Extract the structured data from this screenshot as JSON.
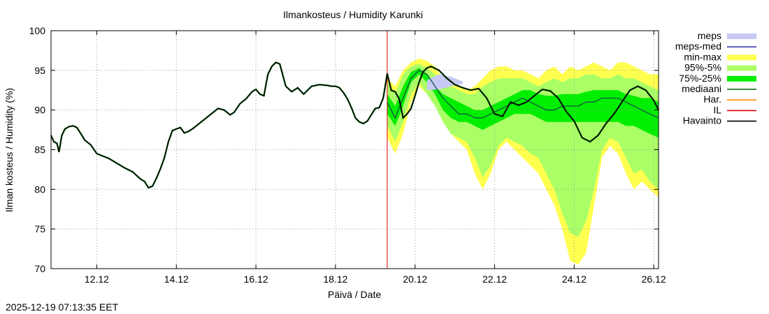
{
  "chart_data": {
    "type": "area",
    "title": "Ilmankosteus / Humidity  Karunki",
    "xlabel": "Päivä / Date",
    "ylabel": "Ilman kosteus / Humidity (%)",
    "ylim": [
      70,
      100
    ],
    "xlim": [
      10.85,
      26.12
    ],
    "yticks": [
      70,
      75,
      80,
      85,
      90,
      95,
      100
    ],
    "xticks": [
      {
        "day": 12,
        "label": "12.12"
      },
      {
        "day": 14,
        "label": "14.12"
      },
      {
        "day": 16,
        "label": "16.12"
      },
      {
        "day": 18,
        "label": "18.12"
      },
      {
        "day": 20,
        "label": "20.12"
      },
      {
        "day": 22,
        "label": "22.12"
      },
      {
        "day": 24,
        "label": "24.12"
      },
      {
        "day": 26,
        "label": "26.12"
      }
    ],
    "grid": true,
    "forecast_start_day": 19.3,
    "legend": [
      {
        "label": "meps",
        "color": "#c8c8f5",
        "kind": "band"
      },
      {
        "label": "meps-med",
        "color": "#3a3ab0",
        "kind": "line"
      },
      {
        "label": "min-max",
        "color": "#ffff50",
        "kind": "band"
      },
      {
        "label": "95%-5%",
        "color": "#aaff66",
        "kind": "band"
      },
      {
        "label": "75%-25%",
        "color": "#00ee00",
        "kind": "band"
      },
      {
        "label": "mediaani",
        "color": "#006600",
        "kind": "line"
      },
      {
        "label": "Har.",
        "color": "#ff8800",
        "kind": "line"
      },
      {
        "label": "IL",
        "color": "#dd0000",
        "kind": "line"
      },
      {
        "label": "Havainto",
        "color": "#000000",
        "kind": "line"
      }
    ],
    "observation": {
      "x": [
        10.85,
        10.92,
        11.0,
        11.05,
        11.12,
        11.2,
        11.3,
        11.4,
        11.5,
        11.6,
        11.7,
        11.85,
        12.0,
        12.15,
        12.3,
        12.5,
        12.7,
        12.9,
        13.1,
        13.2,
        13.3,
        13.4,
        13.5,
        13.6,
        13.7,
        13.8,
        13.9,
        14.0,
        14.1,
        14.2,
        14.3,
        14.4,
        14.5,
        14.7,
        14.9,
        15.05,
        15.2,
        15.35,
        15.45,
        15.6,
        15.75,
        15.9,
        16.0,
        16.1,
        16.2,
        16.3,
        16.4,
        16.5,
        16.6,
        16.75,
        16.9,
        17.05,
        17.2,
        17.4,
        17.6,
        17.8,
        17.9,
        18.0,
        18.1,
        18.2,
        18.3,
        18.4,
        18.5,
        18.6,
        18.7,
        18.8,
        18.85,
        18.9,
        18.95,
        19.0,
        19.1,
        19.2,
        19.3,
        19.4,
        19.5,
        19.6,
        19.7,
        19.8,
        19.9,
        20.0,
        20.1,
        20.2,
        20.3,
        20.4,
        20.6,
        20.8,
        21.0,
        21.2,
        21.4,
        21.6,
        21.8,
        22.0,
        22.2,
        22.4,
        22.6,
        22.8,
        23.0,
        23.2,
        23.4,
        23.6,
        23.8,
        24.0,
        24.2,
        24.4,
        24.6,
        24.8,
        25.0,
        25.2,
        25.4,
        25.6,
        25.8,
        26.0,
        26.12
      ],
      "y": [
        86.8,
        86.0,
        85.8,
        84.7,
        86.8,
        87.6,
        87.9,
        88.0,
        87.8,
        87.0,
        86.2,
        85.6,
        84.5,
        84.2,
        83.9,
        83.3,
        82.7,
        82.2,
        81.3,
        81.0,
        80.2,
        80.4,
        81.4,
        82.6,
        84.0,
        86.0,
        87.4,
        87.6,
        87.8,
        87.1,
        87.3,
        87.6,
        88.0,
        88.8,
        89.6,
        90.2,
        90.0,
        89.4,
        89.7,
        90.8,
        91.4,
        92.3,
        92.6,
        92.0,
        91.8,
        94.5,
        95.5,
        96.0,
        95.8,
        93.0,
        92.3,
        92.8,
        92.0,
        93.0,
        93.2,
        93.1,
        93.0,
        93.0,
        92.8,
        92.2,
        91.4,
        90.3,
        89.0,
        88.5,
        88.3,
        88.6,
        89.0,
        89.4,
        89.8,
        90.2,
        90.3,
        91.5,
        94.6,
        92.5,
        92.3,
        91.4,
        89.0,
        89.5,
        90.2,
        91.8,
        93.5,
        94.8,
        95.3,
        95.5,
        95.0,
        94.0,
        93.2,
        92.8,
        92.5,
        92.7,
        91.5,
        89.5,
        89.2,
        91.0,
        90.6,
        91.0,
        91.8,
        92.6,
        92.4,
        91.5,
        89.8,
        88.6,
        86.5,
        86.0,
        86.8,
        88.3,
        89.5,
        91.0,
        92.5,
        93.0,
        92.5,
        91.2,
        90.0
      ]
    },
    "forecast": {
      "x": [
        19.3,
        19.5,
        19.7,
        19.9,
        20.1,
        20.3,
        20.5,
        20.7,
        20.9,
        21.1,
        21.3,
        21.5,
        21.7,
        21.9,
        22.1,
        22.3,
        22.5,
        22.7,
        22.9,
        23.1,
        23.3,
        23.5,
        23.7,
        23.9,
        24.1,
        24.3,
        24.5,
        24.7,
        24.9,
        25.1,
        25.3,
        25.5,
        25.7,
        25.9,
        26.12
      ],
      "min": [
        86.5,
        84.5,
        87.0,
        91.0,
        93.0,
        92.0,
        91.0,
        89.0,
        87.0,
        86.0,
        85.0,
        82.0,
        80.0,
        82.0,
        85.0,
        86.0,
        85.0,
        84.0,
        83.0,
        82.0,
        80.0,
        78.0,
        75.0,
        71.0,
        70.5,
        72.0,
        78.0,
        84.0,
        85.5,
        84.5,
        82.0,
        80.0,
        81.0,
        80.0,
        79.0
      ],
      "max": [
        94.0,
        93.0,
        95.0,
        96.0,
        96.5,
        96.2,
        95.5,
        94.0,
        93.5,
        93.0,
        92.5,
        93.0,
        94.0,
        95.0,
        95.5,
        95.5,
        95.0,
        95.0,
        94.5,
        94.0,
        95.0,
        95.5,
        94.5,
        95.5,
        95.0,
        95.5,
        96.0,
        95.5,
        95.0,
        96.0,
        96.0,
        95.5,
        95.0,
        94.5,
        94.5
      ],
      "p95": [
        93.5,
        92.0,
        94.5,
        95.5,
        95.8,
        95.3,
        94.5,
        93.5,
        93.0,
        92.5,
        92.0,
        92.0,
        93.0,
        93.5,
        94.0,
        94.0,
        94.0,
        94.0,
        93.5,
        93.0,
        93.5,
        94.0,
        93.5,
        94.0,
        94.0,
        94.5,
        94.5,
        94.0,
        94.0,
        94.5,
        94.0,
        94.0,
        93.5,
        93.0,
        92.5
      ],
      "p5": [
        88.0,
        86.0,
        88.5,
        92.0,
        93.5,
        92.0,
        90.5,
        88.5,
        87.0,
        86.5,
        86.0,
        84.0,
        81.5,
        83.0,
        85.5,
        86.5,
        86.0,
        85.5,
        84.5,
        84.0,
        82.0,
        80.0,
        77.0,
        74.5,
        74.0,
        76.0,
        80.0,
        85.0,
        86.5,
        86.0,
        84.0,
        82.0,
        82.5,
        81.0,
        80.0
      ],
      "p75": [
        92.0,
        90.5,
        93.0,
        94.8,
        95.3,
        94.5,
        93.0,
        92.0,
        91.5,
        91.0,
        90.5,
        90.0,
        90.0,
        90.5,
        91.0,
        91.5,
        92.0,
        92.5,
        92.5,
        92.0,
        91.8,
        91.8,
        92.0,
        92.0,
        92.0,
        92.3,
        92.5,
        92.5,
        92.5,
        92.5,
        92.0,
        91.8,
        91.5,
        91.5,
        91.0
      ],
      "p25": [
        89.5,
        88.0,
        90.5,
        93.5,
        94.5,
        93.5,
        92.0,
        90.0,
        89.0,
        88.5,
        88.5,
        88.0,
        87.5,
        88.0,
        88.5,
        89.0,
        89.5,
        89.5,
        89.5,
        89.0,
        88.5,
        88.5,
        88.5,
        88.5,
        88.5,
        88.5,
        88.5,
        88.5,
        88.5,
        88.5,
        88.0,
        88.0,
        87.5,
        87.0,
        86.5
      ],
      "median": [
        91.0,
        89.0,
        91.5,
        94.0,
        95.0,
        94.5,
        93.0,
        91.5,
        90.5,
        89.5,
        89.5,
        89.0,
        89.0,
        89.5,
        90.0,
        90.5,
        91.0,
        91.5,
        91.0,
        90.5,
        90.0,
        90.0,
        90.5,
        90.5,
        90.5,
        91.0,
        91.0,
        91.5,
        91.5,
        91.5,
        91.0,
        90.5,
        90.0,
        89.5,
        89.0
      ]
    },
    "meps": {
      "x": [
        20.3,
        20.6,
        20.9,
        21.2
      ],
      "low": [
        92.5,
        92.6,
        93.0,
        93.3
      ],
      "high": [
        93.8,
        94.5,
        94.2,
        93.6
      ]
    }
  },
  "footer": {
    "timestamp": "2025-12-19 07:13:35 EET"
  }
}
